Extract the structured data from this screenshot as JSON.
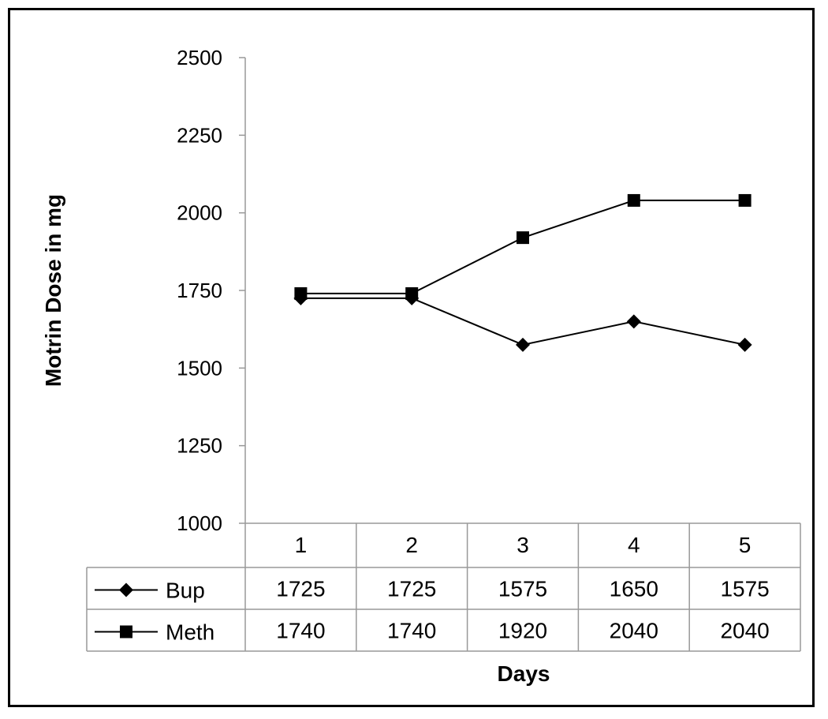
{
  "chart_data": {
    "type": "line",
    "title": "",
    "xlabel": "Days",
    "ylabel": "Motrin Dose in mg",
    "categories": [
      "1",
      "2",
      "3",
      "4",
      "5"
    ],
    "ylim": [
      1000,
      2500
    ],
    "yticks": [
      "1000",
      "1250",
      "1500",
      "1750",
      "2000",
      "2250",
      "2500"
    ],
    "grid": false,
    "legend": "data table below plot",
    "series": [
      {
        "name": "Bup",
        "marker": "diamond",
        "values": [
          1725,
          1725,
          1575,
          1650,
          1575
        ],
        "labels": [
          "1725",
          "1725",
          "1575",
          "1650",
          "1575"
        ],
        "color": "#000000"
      },
      {
        "name": "Meth",
        "marker": "square",
        "values": [
          1740,
          1740,
          1920,
          2040,
          2040
        ],
        "labels": [
          "1740",
          "1740",
          "1920",
          "2040",
          "2040"
        ],
        "color": "#000000"
      }
    ]
  }
}
